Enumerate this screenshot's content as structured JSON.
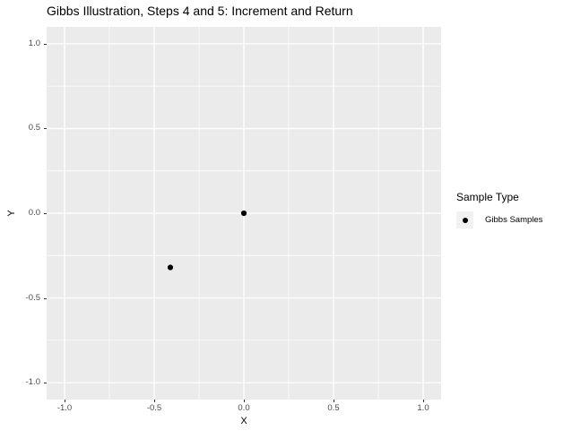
{
  "title": "Gibbs Illustration, Steps 4 and 5: Increment and Return",
  "chart_data": {
    "type": "scatter",
    "title": "Gibbs Illustration, Steps 4 and 5: Increment and Return",
    "xlabel": "X",
    "ylabel": "Y",
    "xlim": [
      -1.1,
      1.1
    ],
    "ylim": [
      -1.1,
      1.1
    ],
    "x_tick_values": [
      -1.0,
      -0.5,
      0.0,
      0.5,
      1.0
    ],
    "x_tick_labels": [
      "-1.0",
      "-0.5",
      "0.0",
      "0.5",
      "1.0"
    ],
    "y_tick_values": [
      -1.0,
      -0.5,
      0.0,
      0.5,
      1.0
    ],
    "y_tick_labels": [
      "-1.0",
      "-0.5",
      "0.0",
      "0.5",
      "1.0"
    ],
    "x_minor_gridlines": [
      -0.75,
      -0.25,
      0.25,
      0.75
    ],
    "y_minor_gridlines": [
      -0.75,
      -0.25,
      0.25,
      0.75
    ],
    "grid": "on",
    "legend_position": "right",
    "series": [
      {
        "name": "Gibbs Samples",
        "marker": "circle",
        "color": "#000000",
        "points": [
          {
            "x": 0.0,
            "y": 0.0
          },
          {
            "x": -0.41,
            "y": -0.32
          }
        ]
      }
    ]
  },
  "legend": {
    "title": "Sample Type",
    "items": [
      {
        "label": "Gibbs Samples",
        "marker": "circle",
        "marker_color": "#000000"
      }
    ]
  },
  "colors": {
    "panel_background": "#ebebeb",
    "gridline": "#ffffff",
    "tick_text": "#4d4d4d",
    "tick_mark": "#333333",
    "text": "#000000",
    "legend_key_background": "#f2f2f2",
    "point": "#000000"
  }
}
